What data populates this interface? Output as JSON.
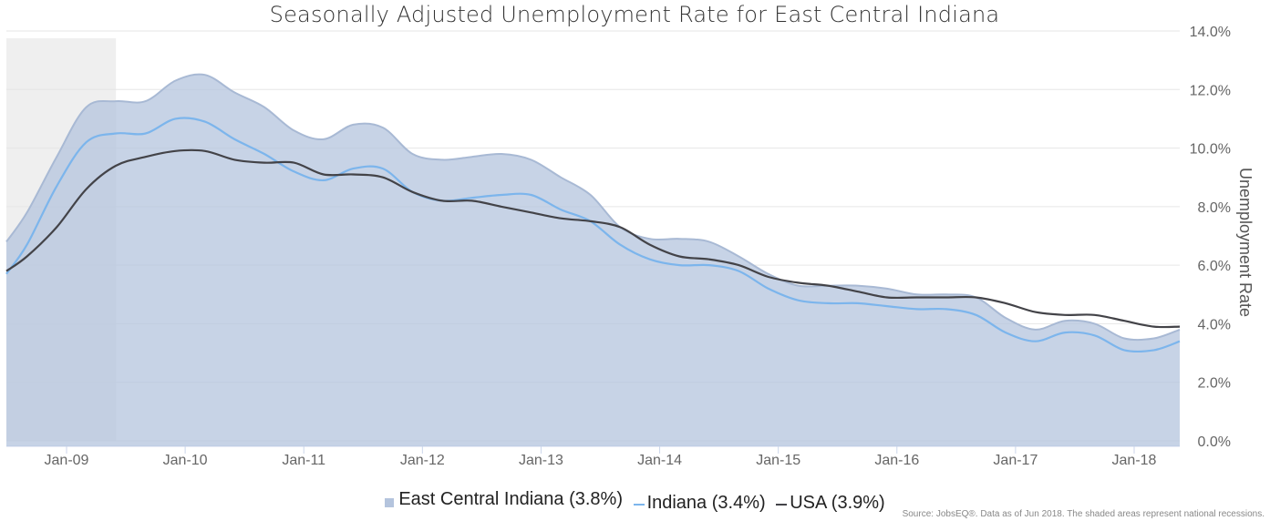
{
  "chart_data": {
    "type": "area",
    "title": "Seasonally Adjusted Unemployment Rate for East Central Indiana",
    "ylabel": "Unemployment Rate",
    "xlabel": "",
    "ylim": [
      0,
      14
    ],
    "yticks": [
      "0.0%",
      "2.0%",
      "4.0%",
      "6.0%",
      "8.0%",
      "10.0%",
      "12.0%",
      "14.0%"
    ],
    "xticks": [
      "Jan-09",
      "Jan-10",
      "Jan-11",
      "Jan-12",
      "Jan-13",
      "Jan-14",
      "Jan-15",
      "Jan-16",
      "Jan-17",
      "Jan-18"
    ],
    "recession": {
      "start": "2008-06",
      "end": "2009-06"
    },
    "grid": true,
    "legend_position": "bottom-center",
    "x": [
      "2008-06",
      "2008-09",
      "2008-12",
      "2009-03",
      "2009-06",
      "2009-09",
      "2009-12",
      "2010-03",
      "2010-06",
      "2010-09",
      "2010-12",
      "2011-03",
      "2011-06",
      "2011-09",
      "2011-12",
      "2012-03",
      "2012-06",
      "2012-09",
      "2012-12",
      "2013-03",
      "2013-06",
      "2013-09",
      "2013-12",
      "2014-03",
      "2014-06",
      "2014-09",
      "2014-12",
      "2015-03",
      "2015-06",
      "2015-09",
      "2015-12",
      "2016-03",
      "2016-06",
      "2016-09",
      "2016-12",
      "2017-03",
      "2017-06",
      "2017-09",
      "2017-12",
      "2018-03",
      "2018-06"
    ],
    "series": [
      {
        "name": "East Central Indiana (3.8%)",
        "style": "area",
        "color": "#b4c4dd",
        "values": [
          6.8,
          7.8,
          9.7,
          11.4,
          11.6,
          11.6,
          12.3,
          12.5,
          11.9,
          11.4,
          10.6,
          10.3,
          10.8,
          10.7,
          9.8,
          9.6,
          9.7,
          9.8,
          9.6,
          9.0,
          8.4,
          7.3,
          6.9,
          6.9,
          6.8,
          6.3,
          5.7,
          5.3,
          5.3,
          5.3,
          5.2,
          5.0,
          5.0,
          4.9,
          4.2,
          3.8,
          4.1,
          4.0,
          3.5,
          3.5,
          3.8
        ]
      },
      {
        "name": "Indiana (3.4%)",
        "style": "line",
        "color": "#7cb5ec",
        "values": [
          5.7,
          6.7,
          8.7,
          10.2,
          10.5,
          10.5,
          11.0,
          10.9,
          10.3,
          9.8,
          9.2,
          8.9,
          9.3,
          9.3,
          8.5,
          8.2,
          8.3,
          8.4,
          8.4,
          7.9,
          7.5,
          6.7,
          6.2,
          6.0,
          6.0,
          5.8,
          5.2,
          4.8,
          4.7,
          4.7,
          4.6,
          4.5,
          4.5,
          4.3,
          3.7,
          3.4,
          3.7,
          3.6,
          3.1,
          3.1,
          3.4
        ]
      },
      {
        "name": "USA (3.9%)",
        "style": "line",
        "color": "#434348",
        "values": [
          5.8,
          6.3,
          7.3,
          8.6,
          9.4,
          9.7,
          9.9,
          9.9,
          9.6,
          9.5,
          9.5,
          9.1,
          9.1,
          9.0,
          8.5,
          8.2,
          8.2,
          8.0,
          7.8,
          7.6,
          7.5,
          7.3,
          6.7,
          6.3,
          6.2,
          6.0,
          5.6,
          5.4,
          5.3,
          5.1,
          4.9,
          4.9,
          4.9,
          4.9,
          4.7,
          4.4,
          4.3,
          4.3,
          4.1,
          3.9,
          3.9
        ]
      }
    ]
  },
  "legend": {
    "items": [
      {
        "label": "East Central Indiana (3.8%)",
        "color": "#b4c4dd"
      },
      {
        "label": "Indiana (3.4%)",
        "color": "#7cb5ec"
      },
      {
        "label": "USA (3.9%)",
        "color": "#434348"
      }
    ]
  },
  "source": "Source: JobsEQ®. Data as of Jun 2018. The shaded areas represent national recessions."
}
